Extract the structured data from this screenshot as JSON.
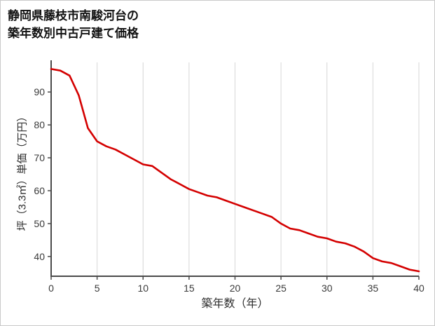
{
  "title": {
    "line1": "静岡県藤枝市南駿河台の",
    "line2": "築年数別中古戸建て価格"
  },
  "chart_data": {
    "type": "line",
    "title": "静岡県藤枝市南駿河台の築年数別中古戸建て価格",
    "xlabel": "築年数（年）",
    "ylabel": "坪（3.3㎡）単価（万円）",
    "xlim": [
      0,
      40
    ],
    "ylim": [
      34,
      99
    ],
    "x_ticks": [
      0,
      5,
      10,
      15,
      20,
      25,
      30,
      35,
      40
    ],
    "y_ticks": [
      40,
      50,
      60,
      70,
      80,
      90
    ],
    "grid": "vertical-only",
    "legend": "none",
    "line_color": "#d40000",
    "axis_color": "#4a4a4a",
    "grid_color": "#d6d6d6",
    "x": [
      0,
      1,
      2,
      3,
      4,
      5,
      6,
      7,
      8,
      9,
      10,
      11,
      12,
      13,
      14,
      15,
      16,
      17,
      18,
      19,
      20,
      21,
      22,
      23,
      24,
      25,
      26,
      27,
      28,
      29,
      30,
      31,
      32,
      33,
      34,
      35,
      36,
      37,
      38,
      39,
      40
    ],
    "values": [
      97,
      96.5,
      95,
      89,
      79,
      75,
      73.5,
      72.5,
      71,
      69.5,
      68,
      67.5,
      65.5,
      63.5,
      62,
      60.5,
      59.5,
      58.5,
      58,
      57,
      56,
      55,
      54,
      53,
      52,
      50,
      48.5,
      48,
      47,
      46,
      45.5,
      44.5,
      44,
      43,
      41.5,
      39.5,
      38.5,
      38,
      37,
      36,
      35.5
    ]
  }
}
